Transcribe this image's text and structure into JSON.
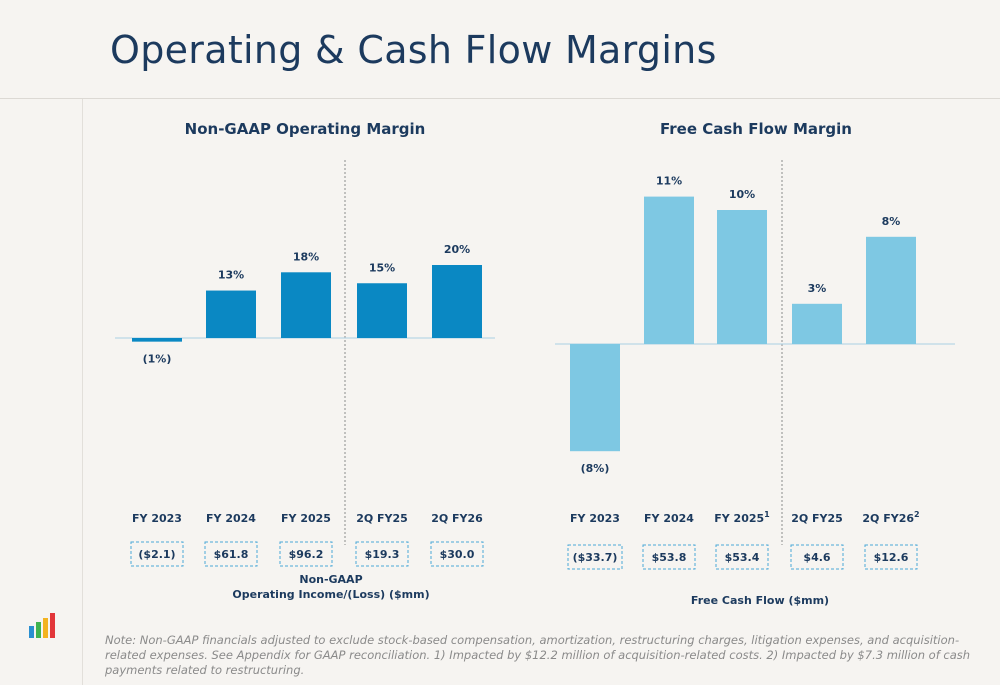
{
  "page": {
    "title": "Operating & Cash Flow Margins"
  },
  "note": "Note: Non-GAAP financials adjusted to exclude stock-based compensation, amortization, restructuring charges, litigation expenses, and acquisition-related expenses. See Appendix for GAAP reconciliation. 1) Impacted by $12.2 million of acquisition-related costs. 2) Impacted by $7.3 million of cash payments related to restructuring.",
  "colors": {
    "operating_bar": "#0a88c3",
    "fcf_bar": "#7ec8e3",
    "text": "#1c3a5e",
    "box_border": "#4aa8d8"
  },
  "chart_data": [
    {
      "type": "bar",
      "title": "Non-GAAP Operating Margin",
      "categories": [
        "FY 2023",
        "FY 2024",
        "FY 2025",
        "2Q FY25",
        "2Q FY26"
      ],
      "category_superscripts": [
        "",
        "",
        "",
        "",
        ""
      ],
      "values": [
        -1,
        13,
        18,
        15,
        20
      ],
      "value_labels": [
        "(1%)",
        "13%",
        "18%",
        "15%",
        "20%"
      ],
      "ylim": [
        -1,
        20
      ],
      "divider_after_index": 2,
      "table_values": [
        "($2.1)",
        "$61.8",
        "$96.2",
        "$19.3",
        "$30.0"
      ],
      "footer": [
        "Non-GAAP",
        "Operating Income/(Loss) ($mm)"
      ],
      "color": "#0a88c3"
    },
    {
      "type": "bar",
      "title": "Free Cash Flow Margin",
      "categories": [
        "FY 2023",
        "FY 2024",
        "FY 2025",
        "2Q FY25",
        "2Q FY26"
      ],
      "category_superscripts": [
        "",
        "",
        "1",
        "",
        "2"
      ],
      "values": [
        -8,
        11,
        10,
        3,
        8
      ],
      "value_labels": [
        "(8%)",
        "11%",
        "10%",
        "3%",
        "8%"
      ],
      "ylim": [
        -8,
        11
      ],
      "divider_after_index": 2,
      "table_values": [
        "($33.7)",
        "$53.8",
        "$53.4",
        "$4.6",
        "$12.6"
      ],
      "footer": [
        "Free Cash Flow ($mm)"
      ],
      "color": "#7ec8e3"
    }
  ]
}
